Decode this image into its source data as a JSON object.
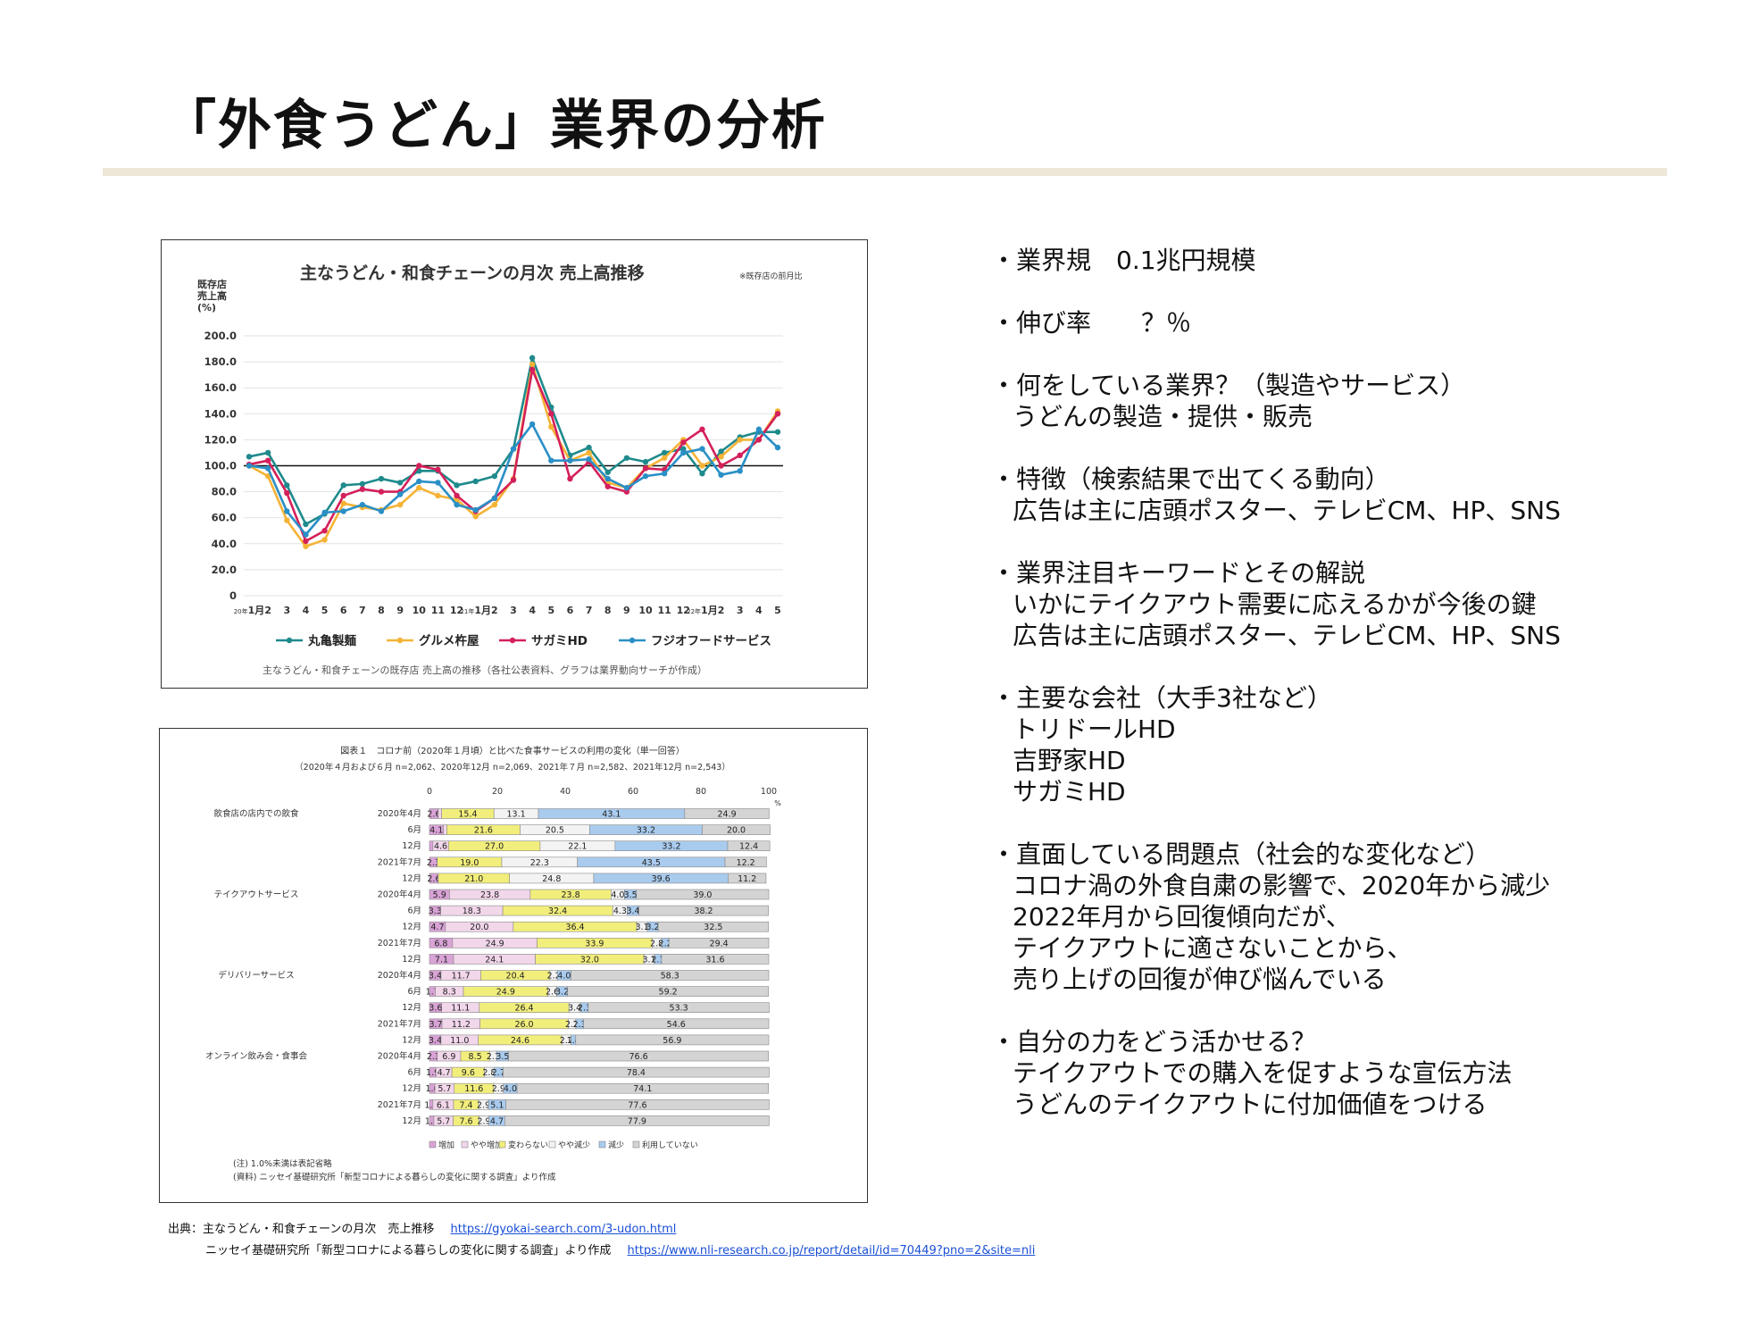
{
  "title": "「外食うどん」業界の分析",
  "bullets": [
    {
      "head": "・業界規　0.1兆円規模",
      "sub": []
    },
    {
      "head": "・伸び率　　？％",
      "sub": []
    },
    {
      "head": "・何をしている業界？（製造やサービス）",
      "sub": [
        "うどんの製造・提供・販売"
      ]
    },
    {
      "head": "・特徴（検索結果で出てくる動向）",
      "sub": [
        "広告は主に店頭ポスター、テレビCM、HP、SNS"
      ]
    },
    {
      "head": "・業界注目キーワードとその解説",
      "sub": [
        "いかにテイクアウト需要に応えるかが今後の鍵",
        "広告は主に店頭ポスター、テレビCM、HP、SNS"
      ]
    },
    {
      "head": "・主要な会社（大手3社など）",
      "sub": [
        "トリドールHD",
        "吉野家HD",
        "サガミHD"
      ]
    },
    {
      "head": "・直面している問題点（社会的な変化など）",
      "sub": [
        "コロナ渦の外食自粛の影響で、2020年から減少",
        "2022年月から回復傾向だが、",
        "テイクアウトに適さないことから、",
        "売り上げの回復が伸び悩んでいる"
      ]
    },
    {
      "head": "・自分の力をどう活かせる？",
      "sub": [
        "テイクアウトでの購入を促すような宣伝方法",
        "うどんのテイクアウトに付加価値をつける"
      ]
    }
  ],
  "sources": {
    "line1_text": "出典：主なうどん・和食チェーンの月次　売上推移",
    "line1_link": "https://gyokai-search.com/3-udon.html",
    "line2_text": "ニッセイ基礎研究所「新型コロナによる暮らしの変化に関する調査」より作成",
    "line2_link": "https://www.nli-research.co.jp/report/detail/id=70449?pno=2&site=nli"
  },
  "chart_data": [
    {
      "type": "line",
      "title": "主なうどん・和食チェーンの月次 売上高推移",
      "title_note": "※既存店の前月比",
      "ylabel": "既存店\n売上高\n(%)",
      "ylim": [
        0,
        200
      ],
      "yticks": [
        "200.0",
        "180.0",
        "160.0",
        "140.0",
        "120.0",
        "100.0",
        "80.0",
        "60.0",
        "40.0",
        "20.0",
        "0"
      ],
      "reference_line": 100,
      "x_tick_labels": [
        "20年1月",
        "2",
        "3",
        "4",
        "5",
        "6",
        "7",
        "8",
        "9",
        "10",
        "11",
        "12",
        "21年1月",
        "2",
        "3",
        "4",
        "5",
        "6",
        "7",
        "8",
        "9",
        "10",
        "11",
        "12",
        "22年1月",
        "2",
        "3",
        "4",
        "5"
      ],
      "x_prefix_20": "20年",
      "x_prefix_21": "21年",
      "x_prefix_22": "22年",
      "series": [
        {
          "name": "丸亀製麺",
          "color": "#1f8a8c",
          "values": [
            107,
            110,
            85,
            55,
            63,
            85,
            86,
            90,
            87,
            96,
            96,
            85,
            88,
            92,
            113,
            183,
            145,
            108,
            114,
            95,
            106,
            103,
            110,
            113,
            94,
            111,
            122,
            126,
            126
          ]
        },
        {
          "name": "グルメ杵屋",
          "color": "#f5b335",
          "values": [
            100,
            92,
            58,
            38,
            43,
            71,
            68,
            66,
            70,
            83,
            77,
            74,
            61,
            70,
            90,
            178,
            130,
            104,
            110,
            87,
            83,
            98,
            106,
            120,
            100,
            107,
            120,
            120,
            142
          ]
        },
        {
          "name": "サガミHD",
          "color": "#d4205a",
          "values": [
            101,
            104,
            79,
            42,
            50,
            77,
            82,
            80,
            80,
            100,
            97,
            77,
            65,
            75,
            89,
            174,
            140,
            90,
            103,
            84,
            80,
            98,
            97,
            118,
            128,
            100,
            108,
            120,
            140
          ]
        },
        {
          "name": "フジオフードサービス",
          "color": "#2a8fc6",
          "values": [
            100,
            98,
            65,
            47,
            64,
            65,
            70,
            65,
            78,
            88,
            87,
            70,
            66,
            75,
            113,
            132,
            104,
            104,
            105,
            90,
            83,
            92,
            94,
            110,
            113,
            93,
            96,
            128,
            114
          ]
        }
      ],
      "caption": "主なうどん・和食チェーンの既存店 売上高の推移（各社公表資料、グラフは業界動向サーチが作成）"
    },
    {
      "type": "bar",
      "stacked": true,
      "horizontal": true,
      "title": "図表１　コロナ前（2020年１月頃）と比べた食事サービスの利用の変化（単一回答）",
      "subtitle": "（2020年４月および６月 n=2,062、2020年12月 n=2,069、2021年７月 n=2,582、2021年12月 n=2,543）",
      "xlim": [
        0,
        100
      ],
      "xticks": [
        "0",
        "20",
        "40",
        "60",
        "80",
        "100"
      ],
      "xunit": "%",
      "legend": [
        "増加",
        "やや増加",
        "変わらない",
        "やや減少",
        "減少",
        "利用していない"
      ],
      "colors": [
        "#d9a3d6",
        "#f2d6ea",
        "#f2ee7c",
        "#f3f3f3",
        "#a9cbee",
        "#d4d4d4"
      ],
      "groups": [
        {
          "name": "飲食店の店内での飲食",
          "rows": [
            {
              "label": "2020年4月",
              "values": [
                2.6,
                1.0,
                15.4,
                13.1,
                43.1,
                24.9
              ],
              "labels": [
                "2.6",
                "",
                "15.4",
                "13.1",
                "43.1",
                "24.9"
              ]
            },
            {
              "label": "6月",
              "values": [
                4.1,
                1.0,
                21.6,
                20.5,
                33.2,
                20.0
              ],
              "labels": [
                "4.1",
                "",
                "21.6",
                "20.5",
                "33.2",
                "20.0"
              ]
            },
            {
              "label": "12月",
              "values": [
                1.0,
                4.6,
                27.0,
                22.1,
                33.2,
                12.4
              ],
              "labels": [
                "",
                "4.6",
                "27.0",
                "22.1",
                "33.2",
                "12.4"
              ]
            },
            {
              "label": "2021年7月",
              "values": [
                2.3,
                0.0,
                19.0,
                22.3,
                43.5,
                12.2
              ],
              "labels": [
                "2.3",
                "",
                "19.0",
                "22.3",
                "43.5",
                "12.2"
              ]
            },
            {
              "label": "12月",
              "values": [
                2.6,
                0.0,
                21.0,
                24.8,
                39.6,
                11.2
              ],
              "labels": [
                "2.6",
                "",
                "21.0",
                "24.8",
                "39.6",
                "11.2"
              ]
            }
          ]
        },
        {
          "name": "テイクアウトサービス",
          "rows": [
            {
              "label": "2020年4月",
              "values": [
                5.9,
                23.8,
                23.8,
                4.0,
                3.5,
                39.0
              ],
              "labels": [
                "5.9",
                "23.8",
                "23.8",
                "4.0",
                "3.5",
                "39.0"
              ]
            },
            {
              "label": "6月",
              "values": [
                3.3,
                18.3,
                32.4,
                4.3,
                3.4,
                38.2
              ],
              "labels": [
                "3.3",
                "18.3",
                "32.4",
                "4.3",
                "3.4",
                "38.2"
              ]
            },
            {
              "label": "12月",
              "values": [
                4.7,
                20.0,
                36.4,
                3.1,
                3.2,
                32.5
              ],
              "labels": [
                "4.7",
                "20.0",
                "36.4",
                "3.1",
                "3.2",
                "32.5"
              ]
            },
            {
              "label": "2021年7月",
              "values": [
                6.8,
                24.9,
                33.9,
                2.8,
                2.2,
                29.4
              ],
              "labels": [
                "6.8",
                "24.9",
                "33.9",
                "2.8",
                "2.2",
                "29.4"
              ]
            },
            {
              "label": "12月",
              "values": [
                7.1,
                24.1,
                32.0,
                3.1,
                2.1,
                31.6
              ],
              "labels": [
                "7.1",
                "24.1",
                "32.0",
                "3.1",
                "2.1",
                "31.6"
              ]
            }
          ]
        },
        {
          "name": "デリバリーサービス",
          "rows": [
            {
              "label": "2020年4月",
              "values": [
                3.4,
                11.7,
                20.4,
                2.2,
                4.0,
                58.3
              ],
              "labels": [
                "3.4",
                "11.7",
                "20.4",
                "2.2",
                "4.0",
                "58.3"
              ]
            },
            {
              "label": "6月",
              "values": [
                1.7,
                8.3,
                24.9,
                2.6,
                3.2,
                59.2
              ],
              "labels": [
                "1.7",
                "8.3",
                "24.9",
                "2.6",
                "3.2",
                "59.2"
              ]
            },
            {
              "label": "12月",
              "values": [
                3.6,
                11.1,
                26.4,
                3.4,
                2.3,
                53.3
              ],
              "labels": [
                "3.6",
                "11.1",
                "26.4",
                "3.4",
                "2.3",
                "53.3"
              ]
            },
            {
              "label": "2021年7月",
              "values": [
                3.7,
                11.2,
                26.0,
                2.2,
                2.3,
                54.6
              ],
              "labels": [
                "3.7",
                "11.2",
                "26.0",
                "2.2",
                "2.3",
                "54.6"
              ]
            },
            {
              "label": "12月",
              "values": [
                3.4,
                11.0,
                24.6,
                2.7,
                1.4,
                56.9
              ],
              "labels": [
                "3.4",
                "11.0",
                "24.6",
                "2.7",
                "1.4",
                "56.9"
              ]
            }
          ]
        },
        {
          "name": "オンライン飲み会・食事会",
          "rows": [
            {
              "label": "2020年4月",
              "values": [
                2.3,
                6.9,
                8.5,
                2.1,
                3.5,
                76.6
              ],
              "labels": [
                "2.3",
                "6.9",
                "8.5",
                "2.1",
                "3.5",
                "76.6"
              ]
            },
            {
              "label": "6月",
              "values": [
                1.9,
                4.7,
                9.6,
                2.8,
                2.7,
                78.4
              ],
              "labels": [
                "1.9",
                "4.7",
                "9.6",
                "2.8",
                "2.7",
                "78.4"
              ]
            },
            {
              "label": "12月",
              "values": [
                1.6,
                5.7,
                11.6,
                2.9,
                4.0,
                74.1
              ],
              "labels": [
                "1.6",
                "5.7",
                "11.6",
                "2.9",
                "4.0",
                "74.1"
              ]
            },
            {
              "label": "2021年7月",
              "values": [
                1.0,
                6.1,
                7.4,
                2.9,
                5.1,
                77.6
              ],
              "labels": [
                "1.0",
                "6.1",
                "7.4",
                "2.9",
                "5.1",
                "77.6"
              ]
            },
            {
              "label": "12月",
              "values": [
                1.3,
                5.7,
                7.6,
                2.9,
                4.7,
                77.9
              ],
              "labels": [
                "1.3",
                "5.7",
                "7.6",
                "2.9",
                "4.7",
                "77.9"
              ]
            }
          ]
        }
      ],
      "notes": [
        "(注) 1.0%未満は表記省略",
        "(資料) ニッセイ基礎研究所「新型コロナによる暮らしの変化に関する調査」より作成"
      ]
    }
  ]
}
